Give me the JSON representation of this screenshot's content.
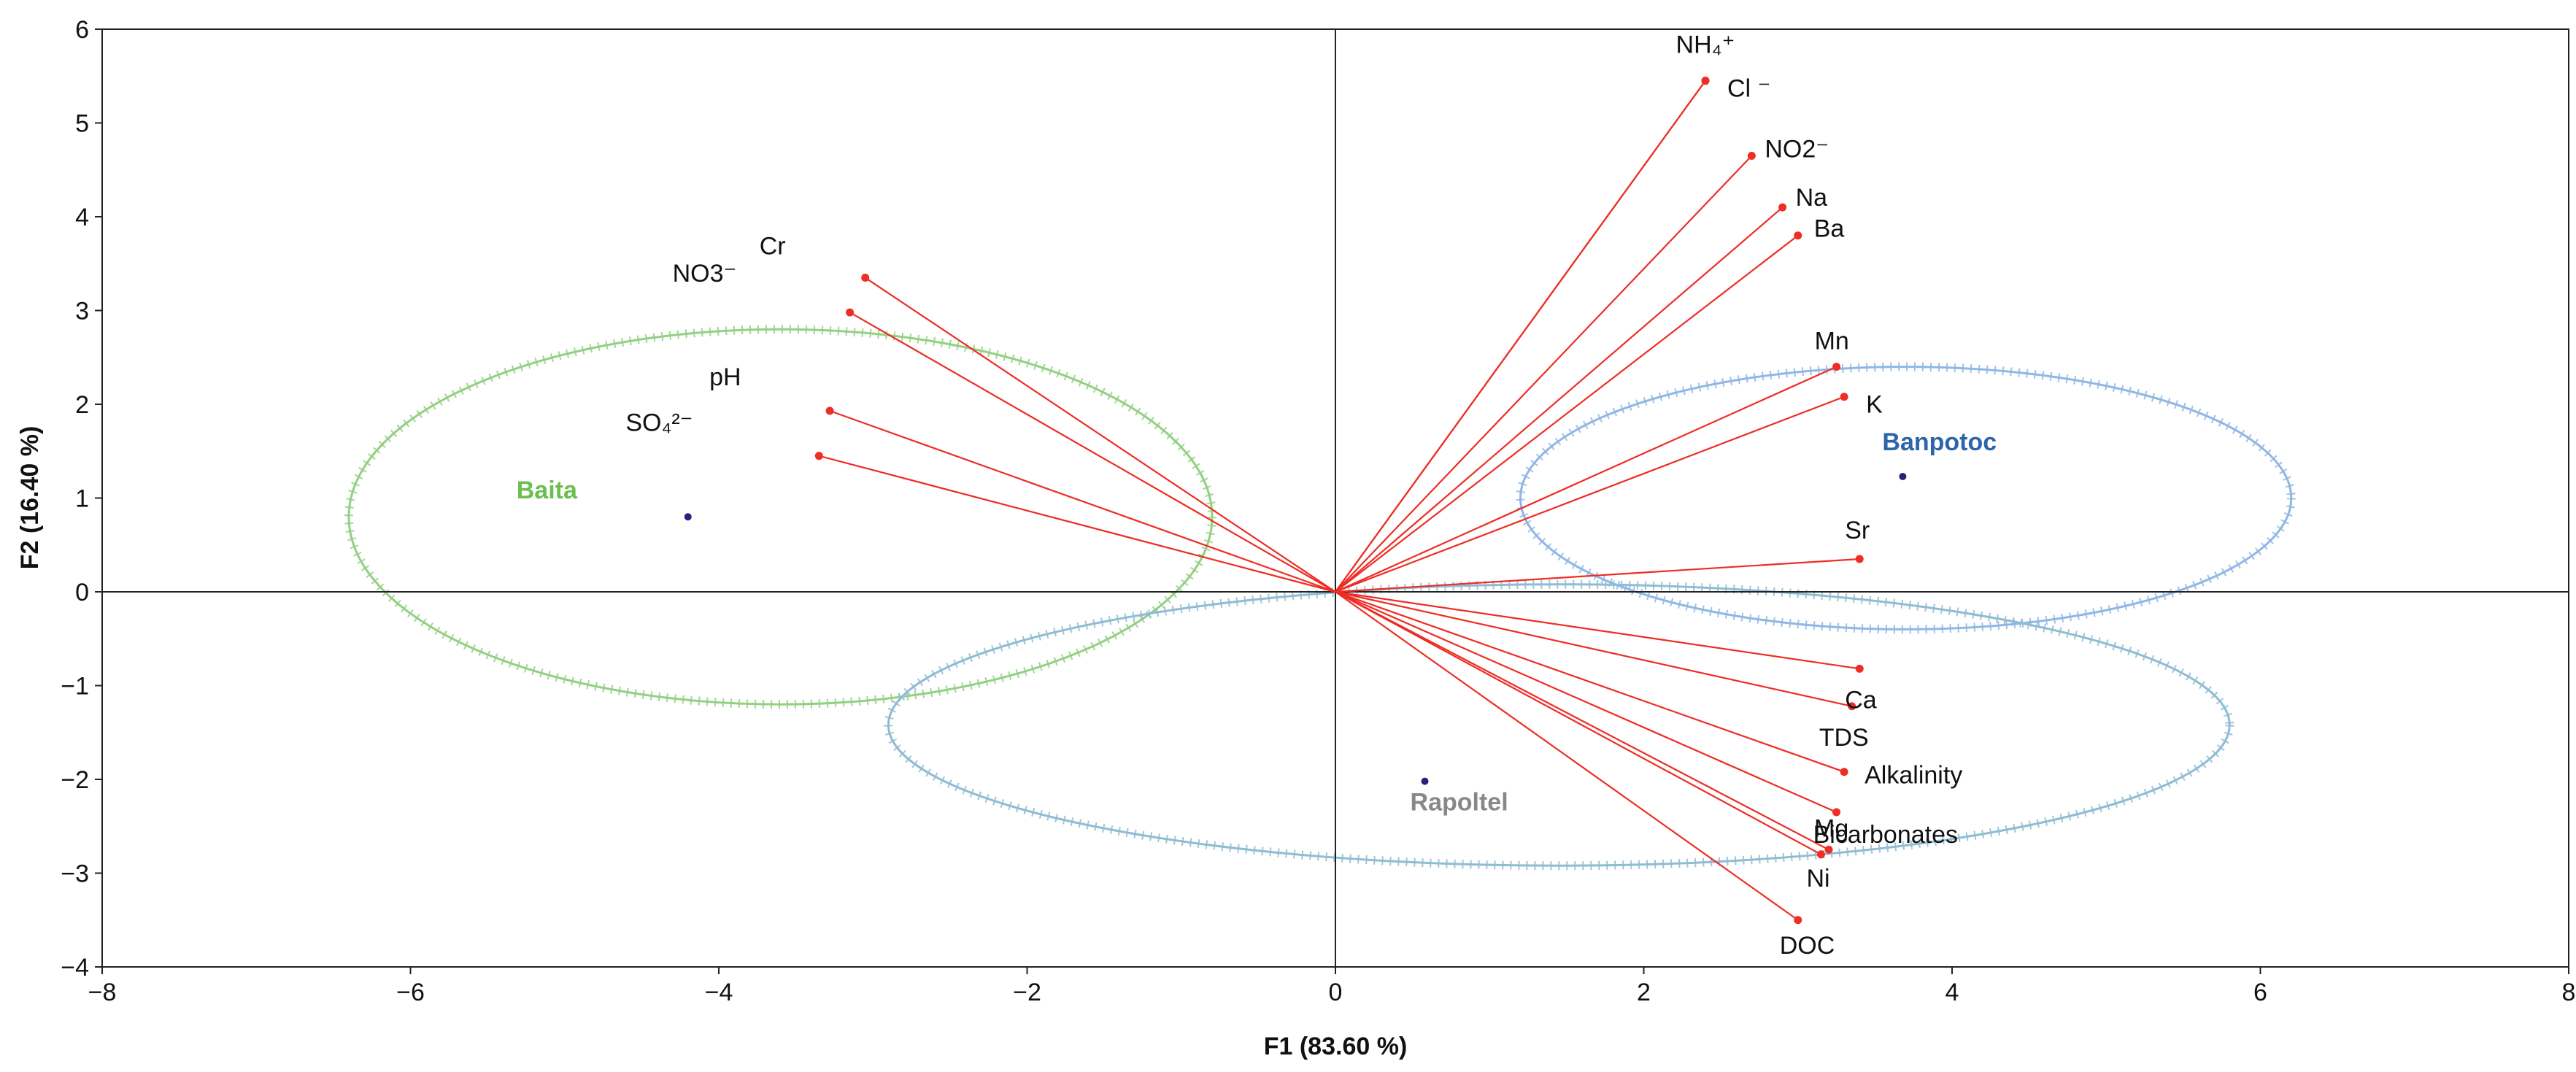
{
  "chart_data": {
    "type": "scatter",
    "subtype": "pca-biplot",
    "xlabel": "F1 (83.60 %)",
    "ylabel": "F2 (16.40 %)",
    "xlim": [
      -8,
      8
    ],
    "ylim": [
      -4,
      6
    ],
    "xticks": [
      -8,
      -6,
      -4,
      -2,
      0,
      2,
      4,
      6,
      8
    ],
    "yticks": [
      -4,
      -3,
      -2,
      -1,
      0,
      1,
      2,
      3,
      4,
      5,
      6
    ],
    "xtick_labels": [
      "−8",
      "−6",
      "−4",
      "−2",
      "0",
      "2",
      "4",
      "6",
      "8"
    ],
    "ytick_labels": [
      "−4",
      "−3",
      "−2",
      "−1",
      "0",
      "1",
      "2",
      "3",
      "4",
      "5",
      "6"
    ],
    "vectors": [
      {
        "id": "nh4",
        "label": "NH₄⁺",
        "x": 2.4,
        "y": 5.45
      },
      {
        "id": "cl",
        "label": "Cl ⁻",
        "x": 2.4,
        "y": 5.45
      },
      {
        "id": "no2",
        "label": "NO2⁻",
        "x": 2.7,
        "y": 4.65
      },
      {
        "id": "na",
        "label": "Na",
        "x": 2.9,
        "y": 4.1
      },
      {
        "id": "ba",
        "label": "Ba",
        "x": 3.0,
        "y": 3.8
      },
      {
        "id": "mn",
        "label": "Mn",
        "x": 3.25,
        "y": 2.4
      },
      {
        "id": "k",
        "label": "K",
        "x": 3.3,
        "y": 2.08
      },
      {
        "id": "sr",
        "label": "Sr",
        "x": 3.4,
        "y": 0.35
      },
      {
        "id": "ca",
        "label": "Ca",
        "x": 3.4,
        "y": -0.82
      },
      {
        "id": "tds",
        "label": "TDS",
        "x": 3.35,
        "y": -1.22
      },
      {
        "id": "alkalinity",
        "label": "Alkalinity",
        "x": 3.3,
        "y": -1.92
      },
      {
        "id": "bicarbonates",
        "label": "Bicarbonates",
        "x": 3.25,
        "y": -2.35
      },
      {
        "id": "mg",
        "label": "Mg",
        "x": 3.2,
        "y": -2.75
      },
      {
        "id": "ni",
        "label": "Ni",
        "x": 3.15,
        "y": -2.8
      },
      {
        "id": "doc",
        "label": "DOC",
        "x": 3.0,
        "y": -3.5
      },
      {
        "id": "cr",
        "label": "Cr",
        "x": -3.05,
        "y": 3.35
      },
      {
        "id": "no3",
        "label": "NO3⁻",
        "x": -3.15,
        "y": 2.98
      },
      {
        "id": "ph",
        "label": "pH",
        "x": -3.28,
        "y": 1.93
      },
      {
        "id": "so4",
        "label": "SO₄²⁻",
        "x": -3.35,
        "y": 1.45
      }
    ],
    "groups": [
      {
        "id": "baita",
        "label": "Baita",
        "x": -4.2,
        "y": 0.8,
        "color": "#6bbf4e"
      },
      {
        "id": "banpotoc",
        "label": "Banpotoc",
        "x": 3.68,
        "y": 1.23,
        "color": "#2e64a8"
      },
      {
        "id": "rapoltel",
        "label": "Rapoltel",
        "x": 0.58,
        "y": -2.02,
        "color": "#888888"
      }
    ],
    "ellipses": [
      {
        "id": "baita-ellipse",
        "cx": -3.6,
        "cy": 0.8,
        "rx": 2.8,
        "ry": 2.0,
        "color": "#93d084"
      },
      {
        "id": "banpotoc-ellipse",
        "cx": 3.7,
        "cy": 1.0,
        "rx": 2.5,
        "ry": 1.4,
        "color": "#90b7e4"
      },
      {
        "id": "rapoltel-ellipse",
        "cx": 1.45,
        "cy": -1.42,
        "rx": 4.35,
        "ry": 1.5,
        "color": "#8fbcd3"
      }
    ],
    "colors": {
      "vector": "#ee2d24",
      "axis": "#222222",
      "marker": "#24247a"
    }
  }
}
